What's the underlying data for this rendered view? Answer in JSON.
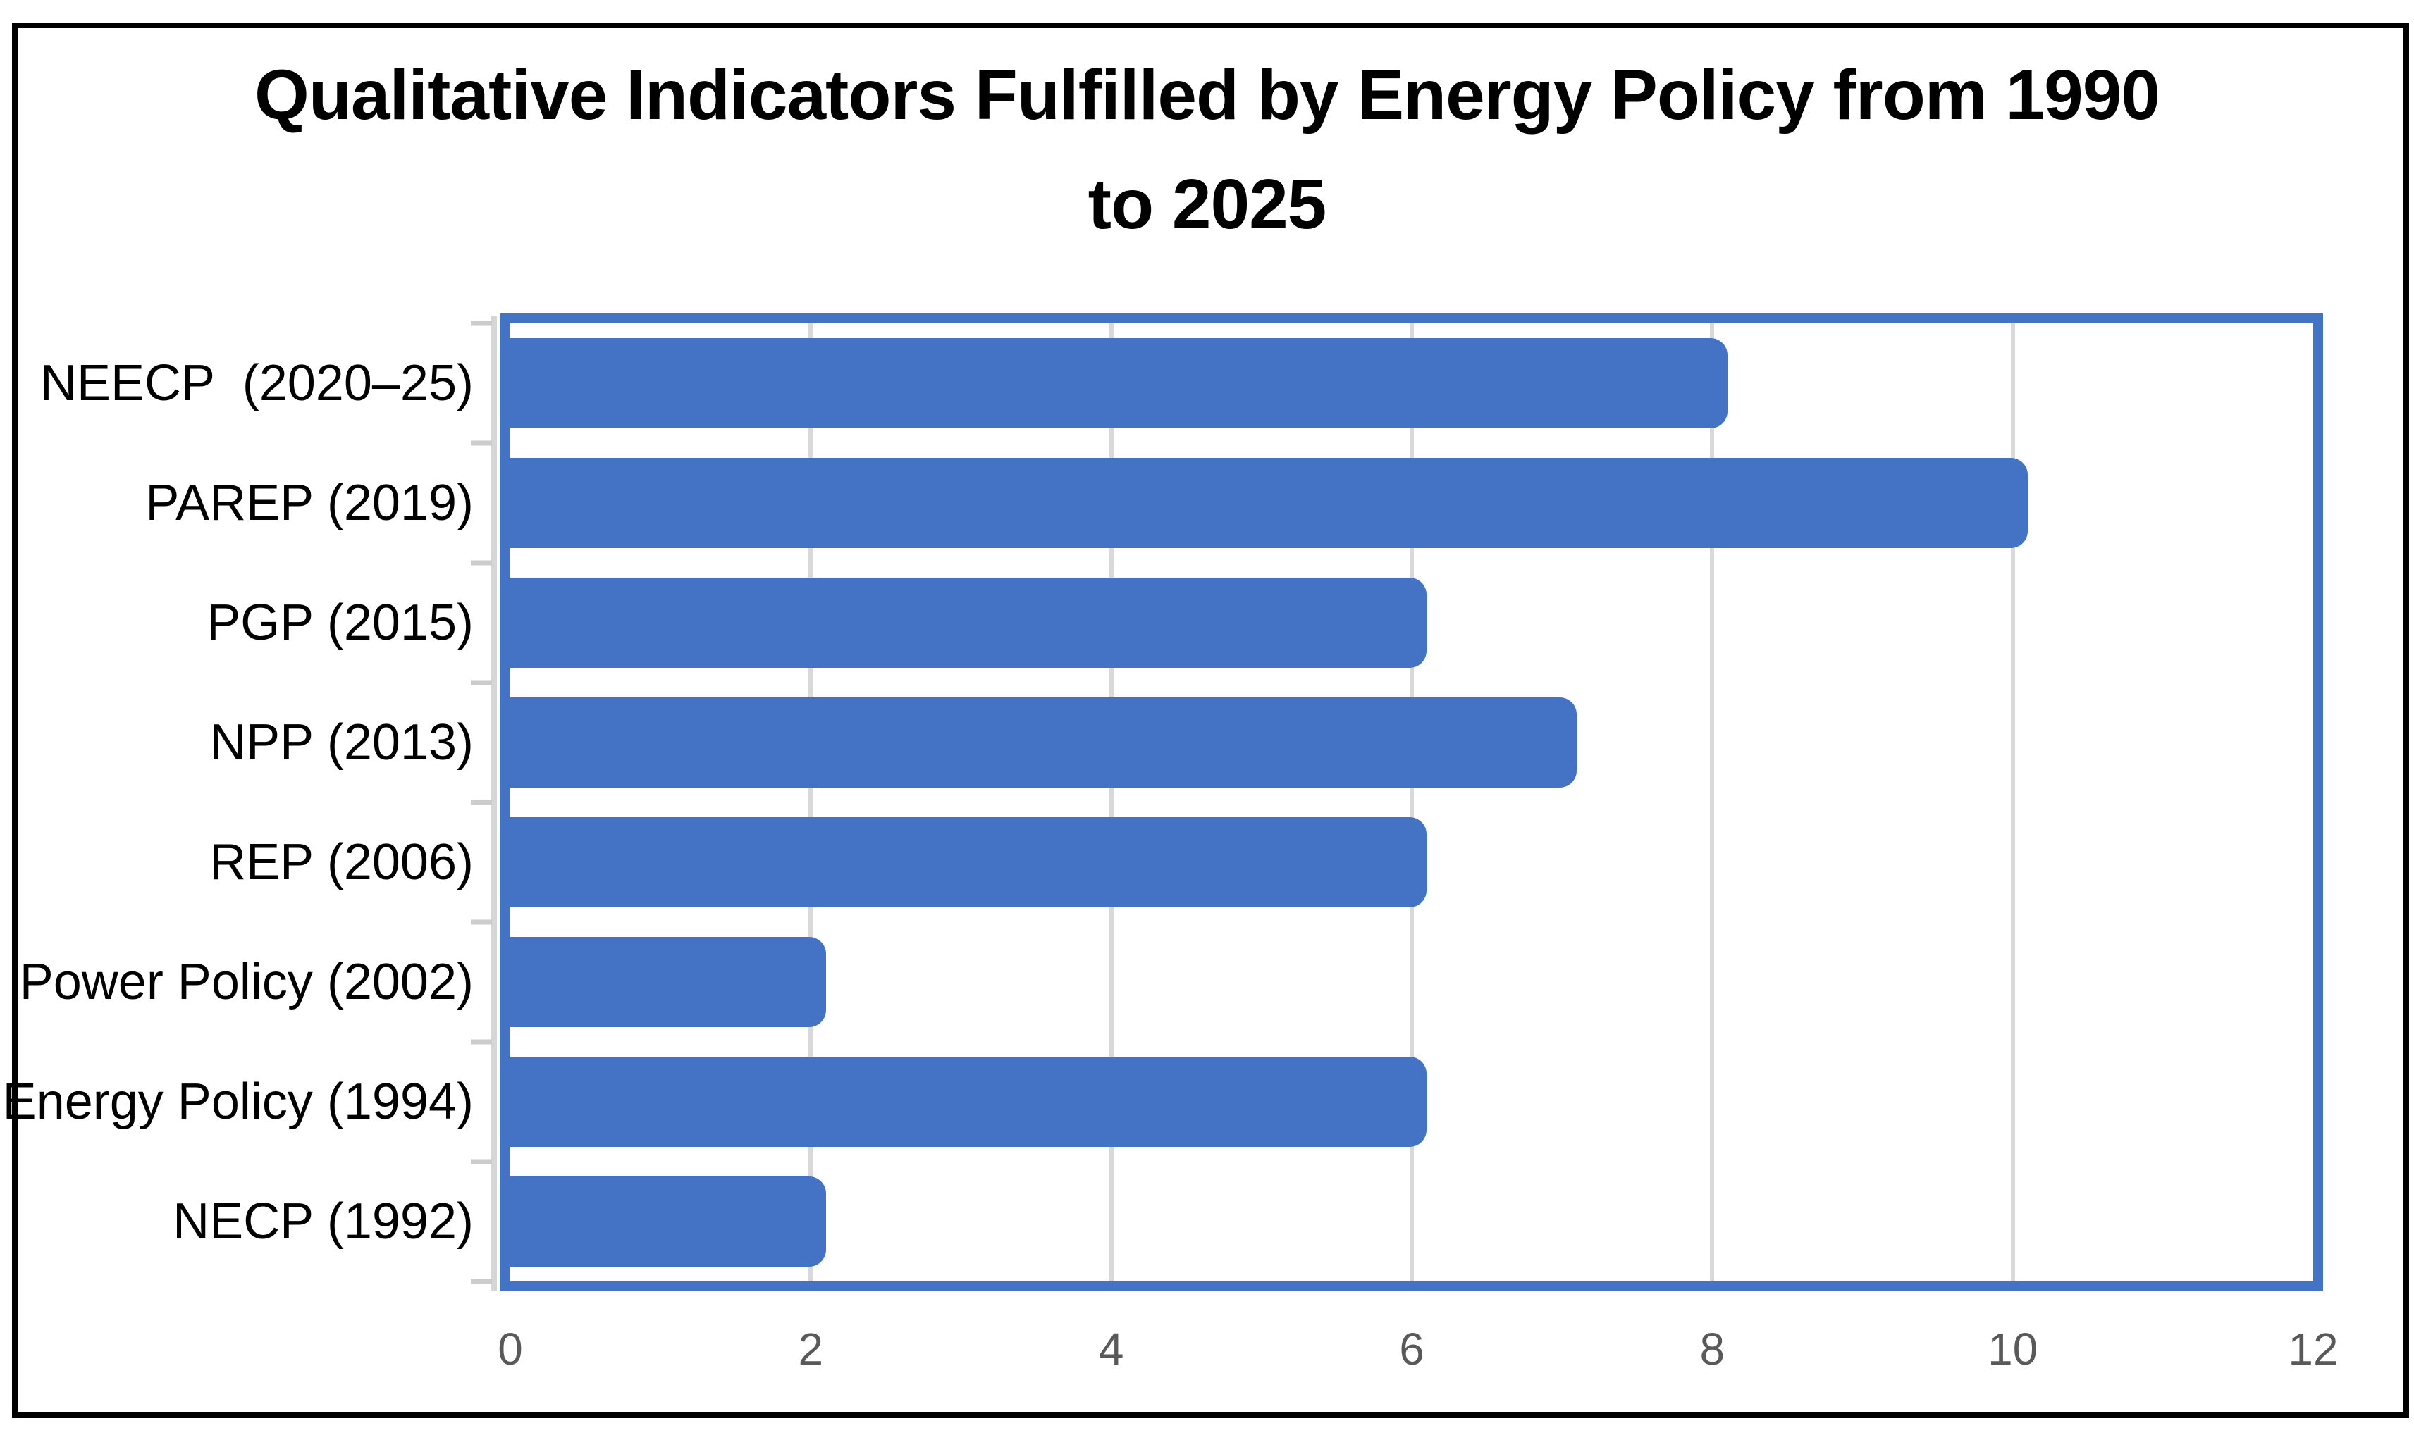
{
  "title": {
    "line1": "Qualitative Indicators Fulfilled by Energy Policy from 1990",
    "line2": "to 2025"
  },
  "chart_data": {
    "type": "bar",
    "orientation": "horizontal",
    "title": "Qualitative Indicators Fulfilled by Energy Policy from 1990 to 2025",
    "categories": [
      "NEECP  (2020–25)",
      "PAREP (2019)",
      "PGP (2015)",
      "NPP (2013)",
      "REP (2006)",
      "Power Policy (2002)",
      "Energy Policy (1994)",
      "NECP (1992)"
    ],
    "values": [
      8.1,
      10.1,
      6.1,
      7.1,
      6.1,
      2.1,
      6.1,
      2.1
    ],
    "xlabel": "",
    "ylabel": "",
    "xlim": [
      0,
      12
    ],
    "x_ticks": [
      0,
      2,
      4,
      6,
      8,
      10,
      12
    ],
    "x_tick_labels": [
      "0",
      "2",
      "4",
      "6",
      "8",
      "10",
      "12"
    ],
    "grid": "vertical-major-gridlines",
    "legend": "none",
    "colors": {
      "bar_fill": "#4472C4",
      "plot_border": "#4472C4",
      "gridline": "#D9D9D9",
      "axis_line": "#D6D6D6",
      "axis_tick": "#CCCCCC",
      "x_tick_text": "#595959",
      "category_text": "#000000",
      "title_text": "#000000",
      "page_border": "#000000",
      "background": "#ffffff"
    }
  }
}
